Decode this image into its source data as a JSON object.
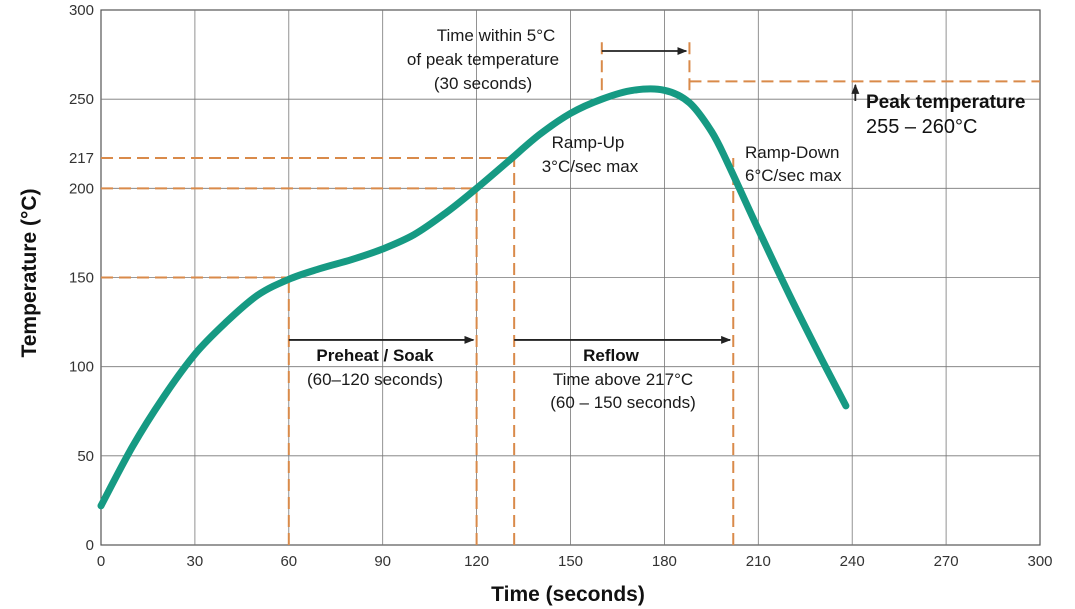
{
  "chart_data": {
    "type": "line",
    "xlabel": "Time (seconds)",
    "ylabel": "Temperature (°C)",
    "xlim": [
      0,
      300
    ],
    "ylim": [
      0,
      300
    ],
    "x_ticks": [
      "0",
      "30",
      "60",
      "90",
      "120",
      "150",
      "180",
      "210",
      "240",
      "270",
      "300"
    ],
    "y_ticks": [
      "0",
      "50",
      "100",
      "150",
      "200",
      "217",
      "250",
      "300"
    ],
    "grid": true,
    "curve_color": "#169a83",
    "guide_color": "#d98a4a",
    "series": [
      {
        "x": [
          0,
          10,
          20,
          30,
          40,
          50,
          60,
          70,
          80,
          90,
          100,
          110,
          120,
          130,
          140,
          150,
          160,
          170,
          180,
          188,
          195,
          200,
          210,
          220,
          230,
          238
        ],
        "y": [
          22,
          55,
          83,
          107,
          125,
          140,
          149,
          155,
          160,
          166,
          174,
          186,
          200,
          215,
          230,
          242,
          250,
          255,
          255,
          248,
          232,
          215,
          177,
          140,
          105,
          78
        ]
      }
    ],
    "reference_lines": {
      "horizontal": [
        {
          "y": 150,
          "x_to": 60
        },
        {
          "y": 200,
          "x_to": 120
        },
        {
          "y": 217,
          "x_to": 132
        },
        {
          "y": 260,
          "x_from": 188
        }
      ],
      "vertical": [
        {
          "x": 60,
          "y_to": 150
        },
        {
          "x": 120,
          "y_to": 200
        },
        {
          "x": 132,
          "y_to": 217
        },
        {
          "x": 202,
          "y_to": 217
        },
        {
          "x": 160,
          "y_from": 255,
          "y_to": 285
        },
        {
          "x": 188,
          "y_from": 255,
          "y_to": 285
        }
      ]
    },
    "annotations": {
      "peak_window": [
        "Time within 5°C",
        "of peak temperature",
        "(30 seconds)"
      ],
      "ramp_up": [
        "Ramp-Up",
        "3°C/sec max"
      ],
      "ramp_down": [
        "Ramp-Down",
        "6°C/sec max"
      ],
      "peak_title": "Peak temperature",
      "peak_range": "255 – 260°C",
      "preheat_title": "Preheat / Soak",
      "preheat_range": "(60–120 seconds)",
      "reflow_title": "Reflow",
      "reflow_line2": "Time above 217°C",
      "reflow_range": "(60 – 150 seconds)"
    }
  }
}
